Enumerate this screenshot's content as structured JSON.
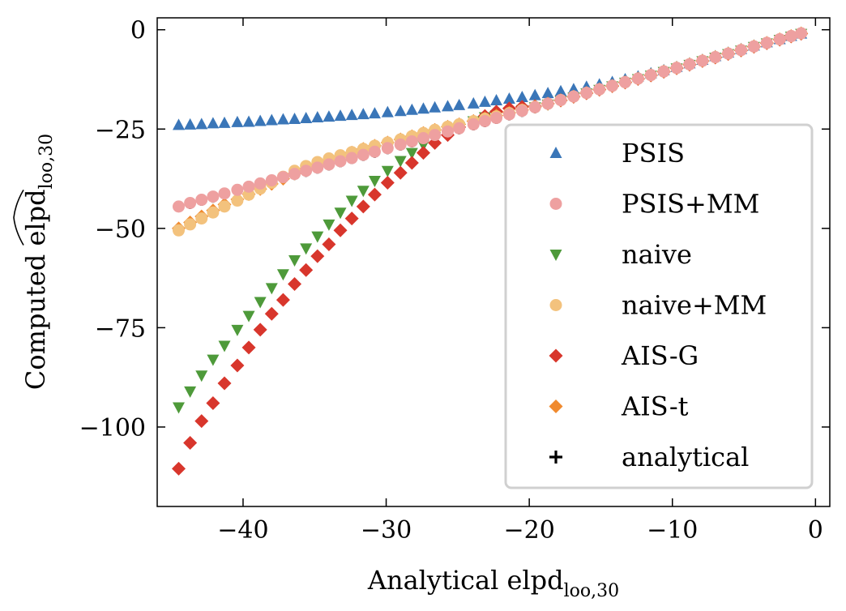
{
  "chart_data": {
    "type": "scatter",
    "xlabel": {
      "main": "Analytical elpd",
      "sub": "loo,30"
    },
    "ylabel": {
      "prefix": "Computed ",
      "main": "elpd",
      "sub": "loo,30"
    },
    "xlim": [
      -46,
      1
    ],
    "ylim": [
      -120,
      3
    ],
    "xticks": [
      -40,
      -30,
      -20,
      -10,
      0
    ],
    "yticks": [
      0,
      -25,
      -50,
      -75,
      -100
    ],
    "xtick_labels": [
      "−40",
      "−30",
      "−20",
      "−10",
      "0"
    ],
    "ytick_labels": [
      "0",
      "−25",
      "−50",
      "−75",
      "−100"
    ],
    "grid": false,
    "legend_position": "lower-right",
    "x": [
      -44.5,
      -43.7,
      -42.9,
      -42.1,
      -41.3,
      -40.4,
      -39.6,
      -38.8,
      -38.0,
      -37.2,
      -36.4,
      -35.6,
      -34.8,
      -34.0,
      -33.2,
      -32.4,
      -31.6,
      -30.8,
      -29.9,
      -29.0,
      -28.2,
      -27.4,
      -26.6,
      -25.7,
      -24.9,
      -23.9,
      -23.1,
      -22.3,
      -21.4,
      -20.5,
      -19.6,
      -18.7,
      -17.8,
      -16.9,
      -16.0,
      -15.1,
      -14.2,
      -13.3,
      -12.4,
      -11.5,
      -10.6,
      -9.7,
      -8.8,
      -7.9,
      -7.0,
      -6.1,
      -5.2,
      -4.3,
      -3.4,
      -2.5,
      -1.7,
      -1.0
    ],
    "series": [
      {
        "name": "PSIS",
        "color": "#3a76b8",
        "marker": "triangle-up",
        "values": [
          -24.0,
          -23.9,
          -23.8,
          -23.6,
          -23.5,
          -23.3,
          -23.2,
          -23.0,
          -22.8,
          -22.6,
          -22.5,
          -22.3,
          -22.1,
          -21.9,
          -21.7,
          -21.5,
          -21.3,
          -21.1,
          -20.8,
          -20.5,
          -20.2,
          -19.9,
          -19.6,
          -19.3,
          -19.0,
          -18.6,
          -18.2,
          -17.8,
          -17.4,
          -17.0,
          -16.5,
          -16.0,
          -15.5,
          -15.0,
          -14.4,
          -13.8,
          -13.2,
          -12.5,
          -11.8,
          -11.0,
          -10.2,
          -9.4,
          -8.5,
          -7.6,
          -6.7,
          -5.8,
          -4.9,
          -4.0,
          -3.2,
          -2.4,
          -1.6,
          -1.0
        ]
      },
      {
        "name": "PSIS+MM",
        "color": "#eea0a0",
        "marker": "circle",
        "values": [
          -44.5,
          -43.6,
          -42.8,
          -42.0,
          -41.2,
          -40.3,
          -39.5,
          -38.7,
          -37.9,
          -37.1,
          -36.3,
          -35.5,
          -34.7,
          -33.9,
          -33.1,
          -32.3,
          -31.5,
          -30.7,
          -29.8,
          -28.9,
          -28.1,
          -27.3,
          -26.5,
          -25.6,
          -24.8,
          -23.8,
          -23.0,
          -22.2,
          -21.3,
          -20.4,
          -19.5,
          -18.6,
          -17.7,
          -16.8,
          -15.9,
          -15.0,
          -14.1,
          -13.2,
          -12.3,
          -11.4,
          -10.5,
          -9.6,
          -8.7,
          -7.8,
          -6.9,
          -6.0,
          -5.1,
          -4.2,
          -3.3,
          -2.4,
          -1.6,
          -0.9
        ]
      },
      {
        "name": "naive",
        "color": "#4e9a3a",
        "marker": "triangle-down",
        "values": [
          -95.0,
          -91.0,
          -87.0,
          -83.0,
          -79.5,
          -75.5,
          -72.0,
          -68.5,
          -65.0,
          -61.5,
          -58.0,
          -55.0,
          -52.0,
          -49.0,
          -46.0,
          -43.0,
          -40.5,
          -38.0,
          -35.5,
          -33.0,
          -31.0,
          -29.0,
          -27.0,
          -25.5,
          -24.5,
          -23.0,
          -22.0,
          -21.5,
          -20.8,
          -20.2,
          -19.5,
          -18.8,
          -17.9,
          -17.0,
          -16.0,
          -15.1,
          -14.2,
          -13.3,
          -12.4,
          -11.5,
          -10.6,
          -9.7,
          -8.8,
          -7.9,
          -7.0,
          -6.1,
          -5.2,
          -4.3,
          -3.4,
          -2.5,
          -1.7,
          -1.0
        ]
      },
      {
        "name": "naive+MM",
        "color": "#f3c27d",
        "marker": "circle",
        "values": [
          -50.5,
          -49.0,
          -47.5,
          -46.0,
          -44.5,
          -43.0,
          -41.5,
          -40.0,
          -38.5,
          -37.0,
          -35.5,
          -34.3,
          -33.3,
          -32.4,
          -31.6,
          -30.8,
          -30.0,
          -29.2,
          -28.4,
          -27.6,
          -26.8,
          -26.0,
          -25.2,
          -24.4,
          -23.8,
          -23.0,
          -22.4,
          -21.8,
          -21.0,
          -20.2,
          -19.4,
          -18.6,
          -17.7,
          -16.8,
          -15.9,
          -15.0,
          -14.1,
          -13.2,
          -12.3,
          -11.4,
          -10.5,
          -9.6,
          -8.7,
          -7.8,
          -6.9,
          -6.0,
          -5.1,
          -4.2,
          -3.3,
          -2.4,
          -1.6,
          -0.9
        ]
      },
      {
        "name": "AIS-G",
        "color": "#d8362c",
        "marker": "diamond",
        "values": [
          -110.5,
          -104.0,
          -98.5,
          -94.0,
          -89.0,
          -84.5,
          -80.0,
          -75.5,
          -71.5,
          -68.0,
          -64.0,
          -60.5,
          -57.0,
          -54.0,
          -50.5,
          -47.5,
          -44.5,
          -41.5,
          -38.5,
          -36.0,
          -33.5,
          -31.0,
          -28.5,
          -26.5,
          -24.5,
          -23.0,
          -21.7,
          -20.6,
          -19.8,
          -19.4,
          -19.2,
          -18.6,
          -17.8,
          -16.9,
          -16.0,
          -15.1,
          -14.2,
          -13.3,
          -12.4,
          -11.5,
          -10.6,
          -9.7,
          -8.8,
          -7.9,
          -7.0,
          -6.1,
          -5.2,
          -4.3,
          -3.4,
          -2.5,
          -1.7,
          -1.0
        ]
      },
      {
        "name": "AIS-t",
        "color": "#f08a2e",
        "marker": "diamond",
        "values": [
          -50.0,
          -48.5,
          -47.0,
          -45.5,
          -44.0,
          -42.7,
          -41.4,
          -40.1,
          -38.8,
          -37.5,
          -36.2,
          -35.0,
          -33.9,
          -32.8,
          -31.8,
          -30.9,
          -30.0,
          -29.2,
          -28.4,
          -27.6,
          -26.8,
          -26.0,
          -25.2,
          -24.4,
          -23.8,
          -23.0,
          -22.3,
          -21.6,
          -20.9,
          -20.2,
          -19.4,
          -18.6,
          -17.7,
          -16.8,
          -15.9,
          -15.0,
          -14.1,
          -13.2,
          -12.3,
          -11.4,
          -10.5,
          -9.6,
          -8.7,
          -7.8,
          -6.9,
          -6.0,
          -5.1,
          -4.2,
          -3.3,
          -2.4,
          -1.6,
          -0.9
        ]
      },
      {
        "name": "analytical",
        "color": "#000000",
        "marker": "plus",
        "values": [
          -44.5,
          -43.7,
          -42.9,
          -42.1,
          -41.3,
          -40.4,
          -39.6,
          -38.8,
          -38.0,
          -37.2,
          -36.4,
          -35.6,
          -34.8,
          -34.0,
          -33.2,
          -32.4,
          -31.6,
          -30.8,
          -29.9,
          -29.0,
          -28.2,
          -27.4,
          -26.6,
          -25.7,
          -24.9,
          -23.9,
          -23.1,
          -22.3,
          -21.4,
          -20.5,
          -19.6,
          -18.7,
          -17.8,
          -16.9,
          -16.0,
          -15.1,
          -14.2,
          -13.3,
          -12.4,
          -11.5,
          -10.6,
          -9.7,
          -8.8,
          -7.9,
          -7.0,
          -6.1,
          -5.2,
          -4.3,
          -3.4,
          -2.5,
          -1.7,
          -1.0
        ]
      }
    ]
  }
}
